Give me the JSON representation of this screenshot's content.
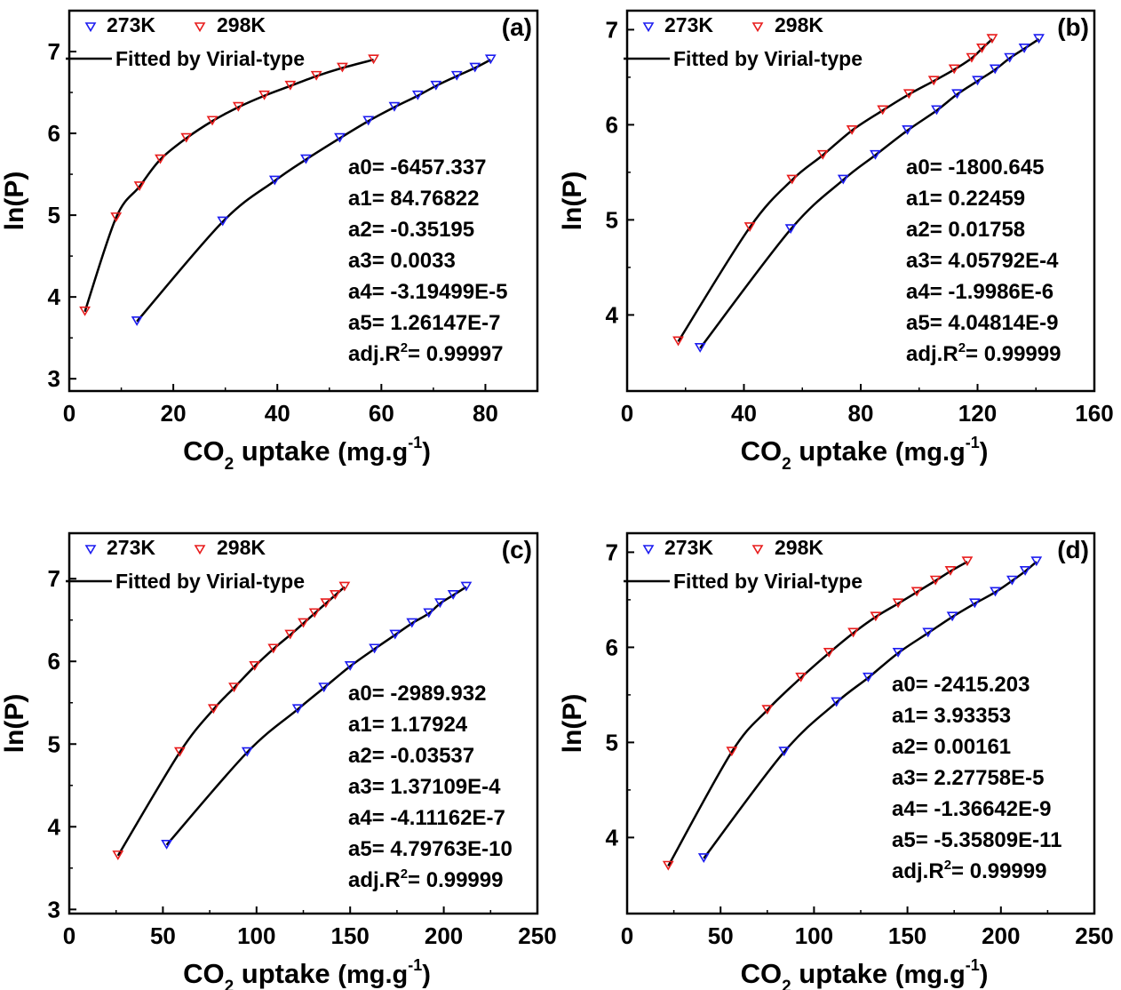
{
  "legend": {
    "series_273": "273K",
    "series_298": "298K",
    "fit_label": "Fitted by Virial-type"
  },
  "colors": {
    "series_273": "#1c1cf0",
    "series_298": "#e81c1c",
    "fit": "#000000"
  },
  "axes": {
    "ylabel": "ln(P)",
    "xlabel_main": "CO",
    "xlabel_sub": "2",
    "xlabel_rest": " uptake ",
    "xlabel_unit": "(mg.g",
    "xlabel_sup": "-1",
    "xlabel_close": ")"
  },
  "chart_data": [
    {
      "type": "scatter",
      "panel_label": "(a)",
      "xlim": [
        0,
        90
      ],
      "ylim": [
        2.85,
        7.5
      ],
      "xticks": [
        0,
        20,
        40,
        60,
        80
      ],
      "yticks": [
        3,
        4,
        5,
        6,
        7
      ],
      "series": [
        {
          "key": "series_273",
          "x": [
            13,
            29.5,
            39.5,
            45.5,
            52,
            57.5,
            62.5,
            67,
            70.5,
            74.5,
            78,
            81
          ],
          "y": [
            3.7,
            4.92,
            5.42,
            5.68,
            5.94,
            6.15,
            6.32,
            6.46,
            6.58,
            6.7,
            6.8,
            6.9
          ]
        },
        {
          "key": "series_298",
          "x": [
            3,
            9,
            13.5,
            17.5,
            22.5,
            27.5,
            32.5,
            37.5,
            42.5,
            47.5,
            52.5,
            58.5
          ],
          "y": [
            3.82,
            4.97,
            5.35,
            5.68,
            5.94,
            6.15,
            6.32,
            6.46,
            6.58,
            6.7,
            6.8,
            6.9
          ]
        }
      ],
      "params": [
        "a0= -6457.337",
        "a1= 84.76822",
        "a2= -0.35195",
        "a3= 0.0033",
        "a4= -3.19499E-5",
        "a5= 1.26147E-7"
      ],
      "adjr_label": "adj.R",
      "adjr_sup": "2",
      "adjr_value": "= 0.99997"
    },
    {
      "type": "scatter",
      "panel_label": "(b)",
      "xlim": [
        0,
        160
      ],
      "ylim": [
        3.2,
        7.2
      ],
      "xticks": [
        0,
        40,
        80,
        120,
        160
      ],
      "yticks": [
        4,
        5,
        6,
        7
      ],
      "series": [
        {
          "key": "series_273",
          "x": [
            25,
            56,
            74,
            85,
            96,
            106,
            113,
            120,
            126,
            131,
            136,
            141
          ],
          "y": [
            3.65,
            4.9,
            5.42,
            5.68,
            5.94,
            6.15,
            6.32,
            6.46,
            6.58,
            6.7,
            6.8,
            6.9
          ]
        },
        {
          "key": "series_298",
          "x": [
            17.5,
            42,
            56.5,
            67,
            77,
            87.5,
            96.5,
            105,
            112,
            118,
            121.5,
            125
          ],
          "y": [
            3.72,
            4.92,
            5.42,
            5.68,
            5.94,
            6.15,
            6.32,
            6.46,
            6.58,
            6.7,
            6.8,
            6.9
          ]
        }
      ],
      "params": [
        "a0= -1800.645",
        "a1= 0.22459",
        "a2= 0.01758",
        "a3= 4.05792E-4",
        "a4= -1.9986E-6",
        "a5= 4.04814E-9"
      ],
      "adjr_label": "adj.R",
      "adjr_sup": "2",
      "adjr_value": "= 0.99999"
    },
    {
      "type": "scatter",
      "panel_label": "(c)",
      "xlim": [
        0,
        250
      ],
      "ylim": [
        2.95,
        7.55
      ],
      "xticks": [
        0,
        50,
        100,
        150,
        200,
        250
      ],
      "yticks": [
        3,
        4,
        5,
        6,
        7
      ],
      "series": [
        {
          "key": "series_273",
          "x": [
            52,
            95,
            122,
            136,
            150,
            163,
            174,
            183,
            192,
            198,
            205,
            212
          ],
          "y": [
            3.78,
            4.9,
            5.42,
            5.68,
            5.94,
            6.15,
            6.32,
            6.46,
            6.58,
            6.7,
            6.8,
            6.9
          ]
        },
        {
          "key": "series_298",
          "x": [
            26,
            59,
            77,
            88,
            99,
            109,
            118,
            125,
            131,
            137,
            142,
            147
          ],
          "y": [
            3.65,
            4.9,
            5.42,
            5.68,
            5.94,
            6.15,
            6.32,
            6.46,
            6.58,
            6.7,
            6.8,
            6.9
          ]
        }
      ],
      "params": [
        "a0= -2989.932",
        "a1= 1.17924",
        "a2= -0.03537",
        "a3= 1.37109E-4",
        "a4= -4.11162E-7",
        "a5= 4.79763E-10"
      ],
      "adjr_label": "adj.R",
      "adjr_sup": "2",
      "adjr_value": "= 0.99999"
    },
    {
      "type": "scatter",
      "panel_label": "(d)",
      "xlim": [
        0,
        250
      ],
      "ylim": [
        3.2,
        7.2
      ],
      "xticks": [
        0,
        50,
        100,
        150,
        200,
        250
      ],
      "yticks": [
        4,
        5,
        6,
        7
      ],
      "series": [
        {
          "key": "series_273",
          "x": [
            41,
            84,
            112,
            129,
            145,
            161,
            174,
            186,
            197,
            206,
            213,
            219
          ],
          "y": [
            3.78,
            4.9,
            5.42,
            5.68,
            5.94,
            6.15,
            6.32,
            6.46,
            6.58,
            6.7,
            6.8,
            6.9
          ]
        },
        {
          "key": "series_298",
          "x": [
            22,
            56,
            75,
            93,
            108,
            121,
            133,
            145,
            155,
            165,
            173,
            182
          ],
          "y": [
            3.7,
            4.9,
            5.34,
            5.68,
            5.94,
            6.15,
            6.32,
            6.46,
            6.58,
            6.7,
            6.8,
            6.9
          ]
        }
      ],
      "params": [
        "a0= -2415.203",
        "a1= 3.93353",
        "a2= 0.00161",
        "a3= 2.27758E-5",
        "a4= -1.36642E-9",
        "a5= -5.35809E-11"
      ],
      "adjr_label": "adj.R",
      "adjr_sup": "2",
      "adjr_value": "= 0.99999"
    }
  ]
}
